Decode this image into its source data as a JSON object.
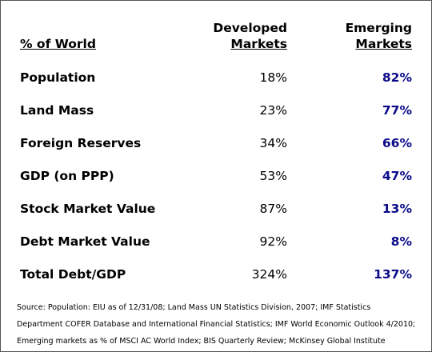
{
  "colors": {
    "emerging": "#0b0b8a",
    "text": "#000000",
    "border": "#555555"
  },
  "chart_data": {
    "type": "table",
    "headers": {
      "label": "% of World",
      "developed_line1": "Developed",
      "developed_line2": "Markets",
      "emerging_line1": "Emerging",
      "emerging_line2": "Markets"
    },
    "rows": [
      {
        "label": "Population",
        "developed": "18%",
        "emerging": "82%"
      },
      {
        "label": "Land Mass",
        "developed": "23%",
        "emerging": "77%"
      },
      {
        "label": "Foreign Reserves",
        "developed": "34%",
        "emerging": "66%"
      },
      {
        "label": "GDP (on PPP)",
        "developed": "53%",
        "emerging": "47%"
      },
      {
        "label": "Stock Market Value",
        "developed": "87%",
        "emerging": "13%"
      },
      {
        "label": "Debt Market Value",
        "developed": "92%",
        "emerging": "8%"
      },
      {
        "label": "Total Debt/GDP",
        "developed": "324%",
        "emerging": "137%"
      }
    ],
    "source_lines": [
      "Source: Population: EIU as of 12/31/08; Land Mass UN Statistics Division, 2007; IMF Statistics",
      "Department COFER Database and International Financial Statistics; IMF World Economic Outlook 4/2010;",
      "Emerging markets as % of MSCI AC World Index; BIS Quarterly Review; McKinsey Global Institute"
    ]
  }
}
